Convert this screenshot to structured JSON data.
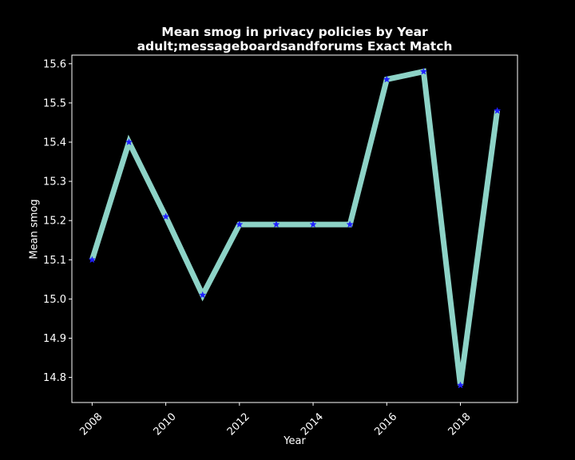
{
  "chart_data": {
    "type": "line",
    "title": [
      "Mean smog in privacy policies by Year",
      "adult;messageboardsandforums Exact Match"
    ],
    "xlabel": "Year",
    "ylabel": "Mean smog",
    "x": [
      2008,
      2009,
      2010,
      2011,
      2012,
      2013,
      2014,
      2015,
      2016,
      2017,
      2018,
      2019
    ],
    "series": [
      {
        "values": [
          15.1,
          15.4,
          15.21,
          15.01,
          15.19,
          15.19,
          15.19,
          15.19,
          15.56,
          15.58,
          14.78,
          15.48
        ]
      }
    ],
    "xlim": [
      2007.45,
      2019.55
    ],
    "ylim": [
      14.736,
      15.622
    ],
    "x_ticks": [
      "2008",
      "2010",
      "2012",
      "2014",
      "2016",
      "2018"
    ],
    "y_ticks": [
      "14.8",
      "14.9",
      "15.0",
      "15.1",
      "15.2",
      "15.3",
      "15.4",
      "15.5",
      "15.6"
    ],
    "grid": false,
    "colors": {
      "background": "#000000",
      "line": "#8dd3c7",
      "marker": "#1f1fff",
      "axes": "#ffffff",
      "text": "#ffffff"
    }
  }
}
